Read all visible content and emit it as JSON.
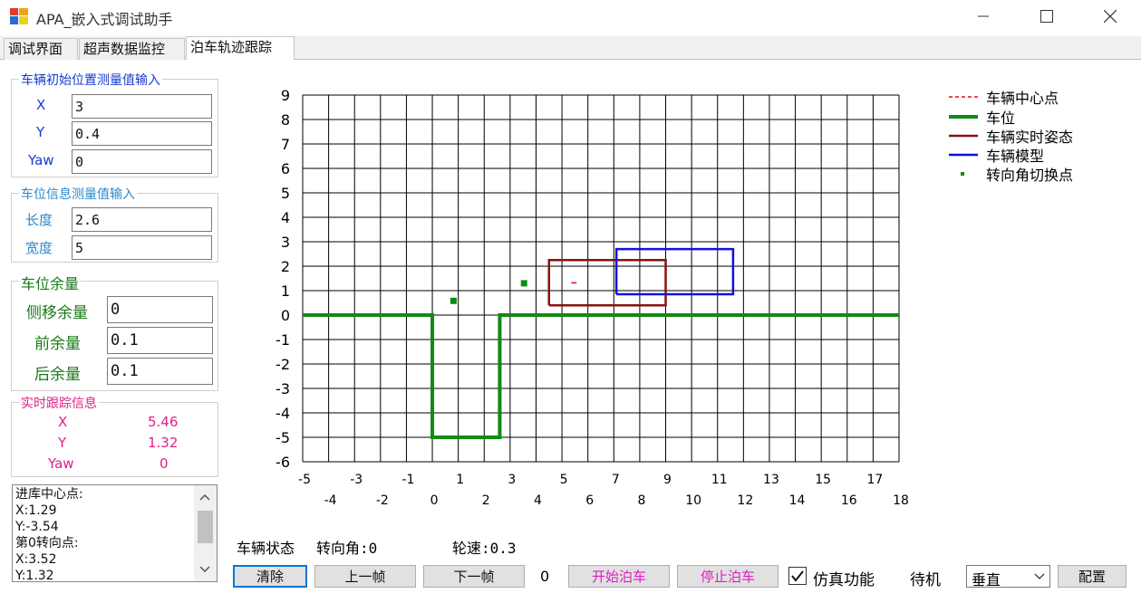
{
  "window": {
    "title": "APA_嵌入式调试助手"
  },
  "tabs": [
    "调试界面",
    "超声数据监控",
    "泊车轨迹跟踪"
  ],
  "init_group": {
    "title": "车辆初始位置测量值输入",
    "x_label": "X",
    "x_value": "3",
    "y_label": "Y",
    "y_value": "0.4",
    "yaw_label": "Yaw",
    "yaw_value": "0"
  },
  "slot_group": {
    "title": "车位信息测量值输入",
    "length_label": "长度",
    "length_value": "2.6",
    "width_label": "宽度",
    "width_value": "5"
  },
  "margin_group": {
    "title": "车位余量",
    "side_label": "侧移余量",
    "side_value": "0",
    "front_label": "前余量",
    "front_value": "0.1",
    "rear_label": "后余量",
    "rear_value": "0.1"
  },
  "track_group": {
    "title": "实时跟踪信息",
    "x_label": "X",
    "x_value": "5.46",
    "y_label": "Y",
    "y_value": "1.32",
    "yaw_label": "Yaw",
    "yaw_value": "0"
  },
  "log_lines": [
    "进库中心点:",
    "X:1.29",
    "Y:-3.54",
    "第0转向点:",
    "X:3.52",
    "Y:1.32"
  ],
  "status": {
    "vehicle_state_label": "车辆状态",
    "steer_label": "转向角:0",
    "speed_label": "轮速:0.3"
  },
  "buttons": {
    "clear": "清除",
    "prev": "上一帧",
    "next": "下一帧",
    "frame_count": "0",
    "start": "开始泊车",
    "stop": "停止泊车",
    "sim_label": "仿真功能",
    "standby": "待机",
    "mode_value": "垂直",
    "config": "配置"
  },
  "colors": {
    "accent": "#0078d7",
    "magenta": "#e020c0",
    "green_text": "#1a7a1a",
    "blue_text": "#1a3ad0",
    "light_blue_text": "#2a8ad0",
    "pink_text": "#e0208a",
    "parking_green": "#128a12",
    "pose_red": "#8b1010",
    "model_blue": "#1010e0",
    "center_red": "#e01010"
  },
  "chart_data": {
    "type": "line",
    "title": "",
    "xlim": [
      -5,
      18
    ],
    "ylim": [
      -6,
      9
    ],
    "x_ticks": [
      -5,
      -4,
      -3,
      -2,
      -1,
      0,
      1,
      2,
      3,
      4,
      5,
      6,
      7,
      8,
      9,
      10,
      11,
      12,
      13,
      14,
      15,
      16,
      17,
      18
    ],
    "y_ticks": [
      -6,
      -5,
      -4,
      -3,
      -2,
      -1,
      0,
      1,
      2,
      3,
      4,
      5,
      6,
      7,
      8,
      9
    ],
    "legend": [
      "车辆中心点",
      "车位",
      "车辆实时姿态",
      "车辆模型",
      "转向角切换点"
    ],
    "series": [
      {
        "name": "车位",
        "x": [
          -5,
          0,
          0,
          2.6,
          2.6,
          18
        ],
        "y": [
          0,
          0,
          -5,
          -5,
          0,
          0
        ]
      },
      {
        "name": "车辆实时姿态",
        "x": [
          4.5,
          9,
          9,
          4.5,
          4.5
        ],
        "y": [
          0.4,
          0.4,
          2.25,
          2.25,
          0.4
        ]
      },
      {
        "name": "车辆模型",
        "x": [
          7.1,
          11.6,
          11.6,
          7.1,
          7.1
        ],
        "y": [
          0.85,
          0.85,
          2.7,
          2.7,
          0.85
        ]
      },
      {
        "name": "车辆中心点",
        "x": [
          5.46
        ],
        "y": [
          1.32
        ]
      },
      {
        "name": "转向角切换点",
        "x": [
          0.8,
          3.52
        ],
        "y": [
          0.6,
          1.32
        ]
      }
    ]
  }
}
